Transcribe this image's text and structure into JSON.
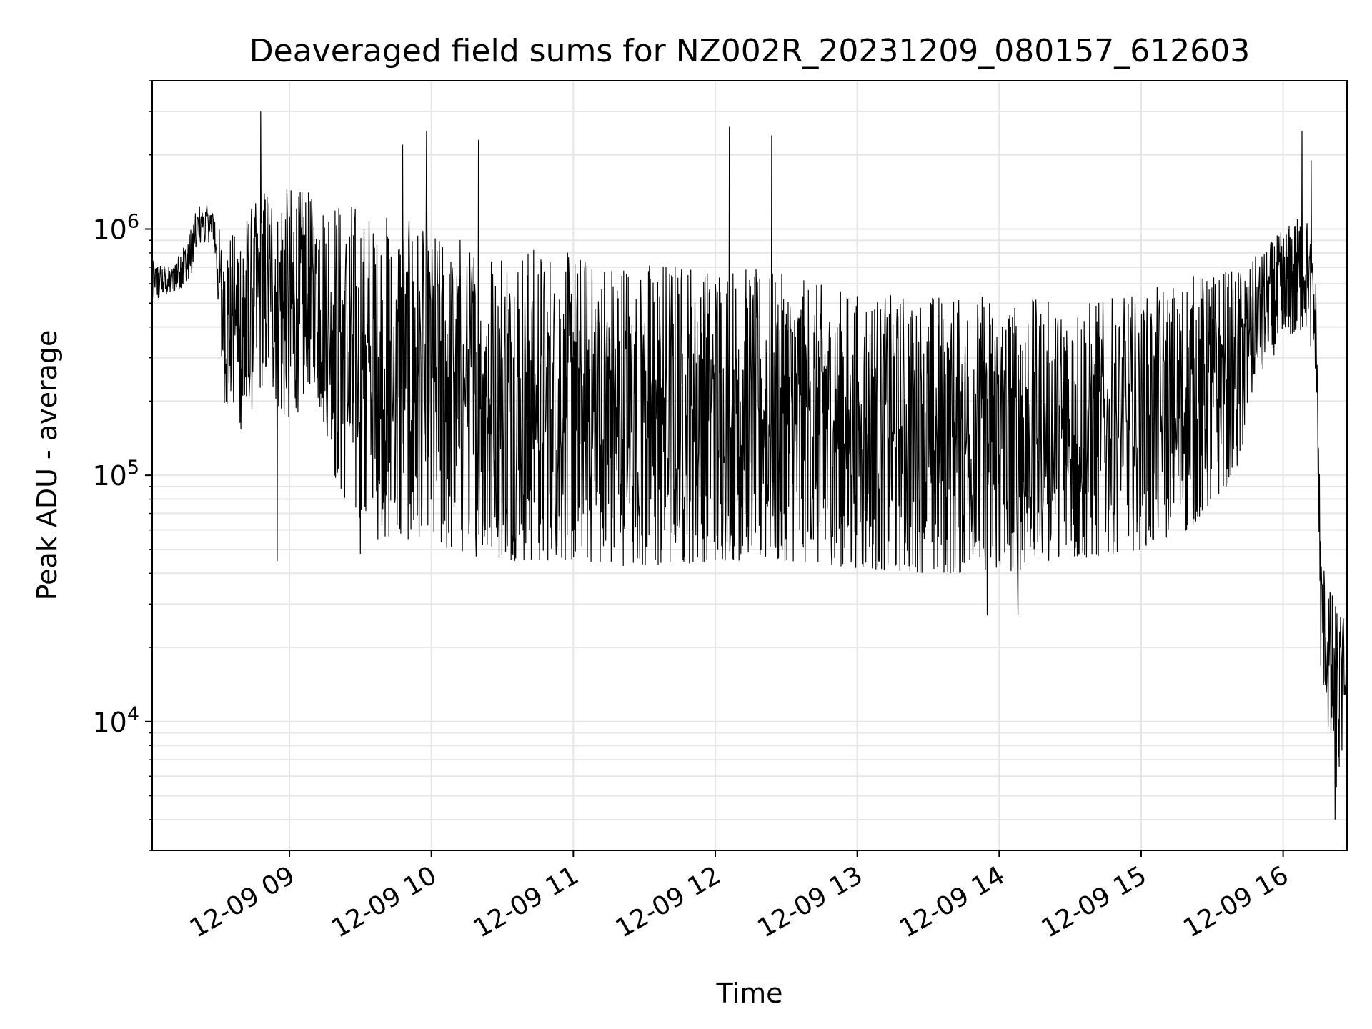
{
  "chart_data": {
    "type": "line",
    "title": "Deaveraged field sums for NZ002R_20231209_080157_612603",
    "xlabel": "Time",
    "ylabel": "Peak ADU - average",
    "y_scale": "log",
    "ylim": [
      3000,
      4000000
    ],
    "xlim": [
      "2023-12-09 08:02",
      "2023-12-09 16:27"
    ],
    "x_ticks": [
      {
        "value": "2023-12-09 09:00",
        "label": "12-09 09"
      },
      {
        "value": "2023-12-09 10:00",
        "label": "12-09 10"
      },
      {
        "value": "2023-12-09 11:00",
        "label": "12-09 11"
      },
      {
        "value": "2023-12-09 12:00",
        "label": "12-09 12"
      },
      {
        "value": "2023-12-09 13:00",
        "label": "12-09 13"
      },
      {
        "value": "2023-12-09 14:00",
        "label": "12-09 14"
      },
      {
        "value": "2023-12-09 15:00",
        "label": "12-09 15"
      },
      {
        "value": "2023-12-09 16:00",
        "label": "12-09 16"
      }
    ],
    "y_ticks": [
      {
        "value": 10000,
        "base": "10",
        "exp": "4"
      },
      {
        "value": 100000,
        "base": "10",
        "exp": "5"
      },
      {
        "value": 1000000,
        "base": "10",
        "exp": "6"
      }
    ],
    "grid": true,
    "line_color": "#000000",
    "series": [
      {
        "envelope": [
          {
            "t": "08:02",
            "low": 500000,
            "high": 750000
          },
          {
            "t": "08:10",
            "low": 550000,
            "high": 700000
          },
          {
            "t": "08:18",
            "low": 600000,
            "high": 1000000
          },
          {
            "t": "08:22",
            "low": 850000,
            "high": 1300000
          },
          {
            "t": "08:28",
            "low": 900000,
            "high": 1200000
          },
          {
            "t": "08:32",
            "low": 200000,
            "high": 900000
          },
          {
            "t": "08:40",
            "low": 150000,
            "high": 1100000
          },
          {
            "t": "08:50",
            "low": 250000,
            "high": 1500000
          },
          {
            "t": "09:00",
            "low": 150000,
            "high": 1500000
          },
          {
            "t": "09:10",
            "low": 250000,
            "high": 1400000
          },
          {
            "t": "09:20",
            "low": 90000,
            "high": 1400000
          },
          {
            "t": "09:35",
            "low": 55000,
            "high": 1200000
          },
          {
            "t": "09:50",
            "low": 55000,
            "high": 1100000
          },
          {
            "t": "10:00",
            "low": 50000,
            "high": 1000000
          },
          {
            "t": "10:30",
            "low": 45000,
            "high": 900000
          },
          {
            "t": "11:00",
            "low": 45000,
            "high": 800000
          },
          {
            "t": "11:30",
            "low": 42000,
            "high": 750000
          },
          {
            "t": "12:00",
            "low": 45000,
            "high": 750000
          },
          {
            "t": "12:30",
            "low": 45000,
            "high": 650000
          },
          {
            "t": "13:00",
            "low": 42000,
            "high": 550000
          },
          {
            "t": "13:30",
            "low": 40000,
            "high": 550000
          },
          {
            "t": "14:00",
            "low": 40000,
            "high": 550000
          },
          {
            "t": "14:30",
            "low": 45000,
            "high": 500000
          },
          {
            "t": "15:00",
            "low": 50000,
            "high": 550000
          },
          {
            "t": "15:20",
            "low": 60000,
            "high": 650000
          },
          {
            "t": "15:40",
            "low": 100000,
            "high": 700000
          },
          {
            "t": "15:50",
            "low": 250000,
            "high": 800000
          },
          {
            "t": "16:00",
            "low": 350000,
            "high": 1000000
          },
          {
            "t": "16:10",
            "low": 400000,
            "high": 1200000
          },
          {
            "t": "16:14",
            "low": 250000,
            "high": 600000
          },
          {
            "t": "16:16",
            "low": 15000,
            "high": 50000
          },
          {
            "t": "16:20",
            "low": 8000,
            "high": 35000
          },
          {
            "t": "16:23",
            "low": 5000,
            "high": 30000
          },
          {
            "t": "16:27",
            "low": 12000,
            "high": 25000
          }
        ],
        "spikes": [
          {
            "t": "08:48",
            "value": 3000000
          },
          {
            "t": "08:55",
            "value": 45000
          },
          {
            "t": "09:30",
            "value": 48000
          },
          {
            "t": "09:48",
            "value": 2200000
          },
          {
            "t": "09:58",
            "value": 2500000
          },
          {
            "t": "10:20",
            "value": 2300000
          },
          {
            "t": "12:06",
            "value": 2600000
          },
          {
            "t": "12:24",
            "value": 2400000
          },
          {
            "t": "13:55",
            "value": 27000
          },
          {
            "t": "14:08",
            "value": 27000
          },
          {
            "t": "16:08",
            "value": 2500000
          },
          {
            "t": "16:12",
            "value": 1900000
          },
          {
            "t": "16:22",
            "value": 4000
          }
        ]
      }
    ]
  }
}
